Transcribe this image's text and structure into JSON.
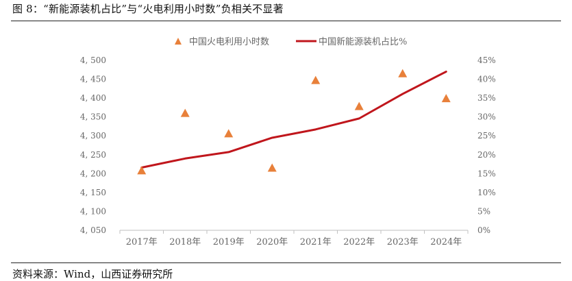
{
  "figure": {
    "title": "图 8：“新能源装机占比”与“火电利用小时数”负相关不显著",
    "source": "资料来源：Wind，山西证券研究所"
  },
  "colors": {
    "triangle_series": "#E8803A",
    "line_series": "#C0161C",
    "axis": "#bfbfbf",
    "tick_text": "#666666"
  },
  "chart_data": {
    "type": "line",
    "categories": [
      "2017年",
      "2018年",
      "2019年",
      "2020年",
      "2021年",
      "2022年",
      "2023年",
      "2024年"
    ],
    "series": [
      {
        "name": "中国火电利用小时数",
        "mark": "triangle",
        "axis": "left",
        "values": [
          4209,
          4361,
          4307,
          4216,
          4448,
          4379,
          4466,
          4400
        ]
      },
      {
        "name": "中国新能源装机占比%",
        "mark": "line",
        "axis": "right",
        "values": [
          16.6,
          19.0,
          20.7,
          24.5,
          26.7,
          29.6,
          36.1,
          42.0
        ]
      }
    ],
    "y_left": {
      "range": [
        4050,
        4500
      ],
      "ticks": [
        4050,
        4100,
        4150,
        4200,
        4250,
        4300,
        4350,
        4400,
        4450,
        4500
      ],
      "tick_labels": [
        "4, 050",
        "4, 100",
        "4, 150",
        "4, 200",
        "4, 250",
        "4, 300",
        "4, 350",
        "4, 400",
        "4, 450",
        "4, 500"
      ]
    },
    "y_right": {
      "range": [
        0,
        45
      ],
      "ticks": [
        0,
        5,
        10,
        15,
        20,
        25,
        30,
        35,
        40,
        45
      ],
      "tick_labels": [
        "0%",
        "5%",
        "10%",
        "15%",
        "20%",
        "25%",
        "30%",
        "35%",
        "40%",
        "45%"
      ]
    },
    "grid": false,
    "legend": "top-center"
  }
}
